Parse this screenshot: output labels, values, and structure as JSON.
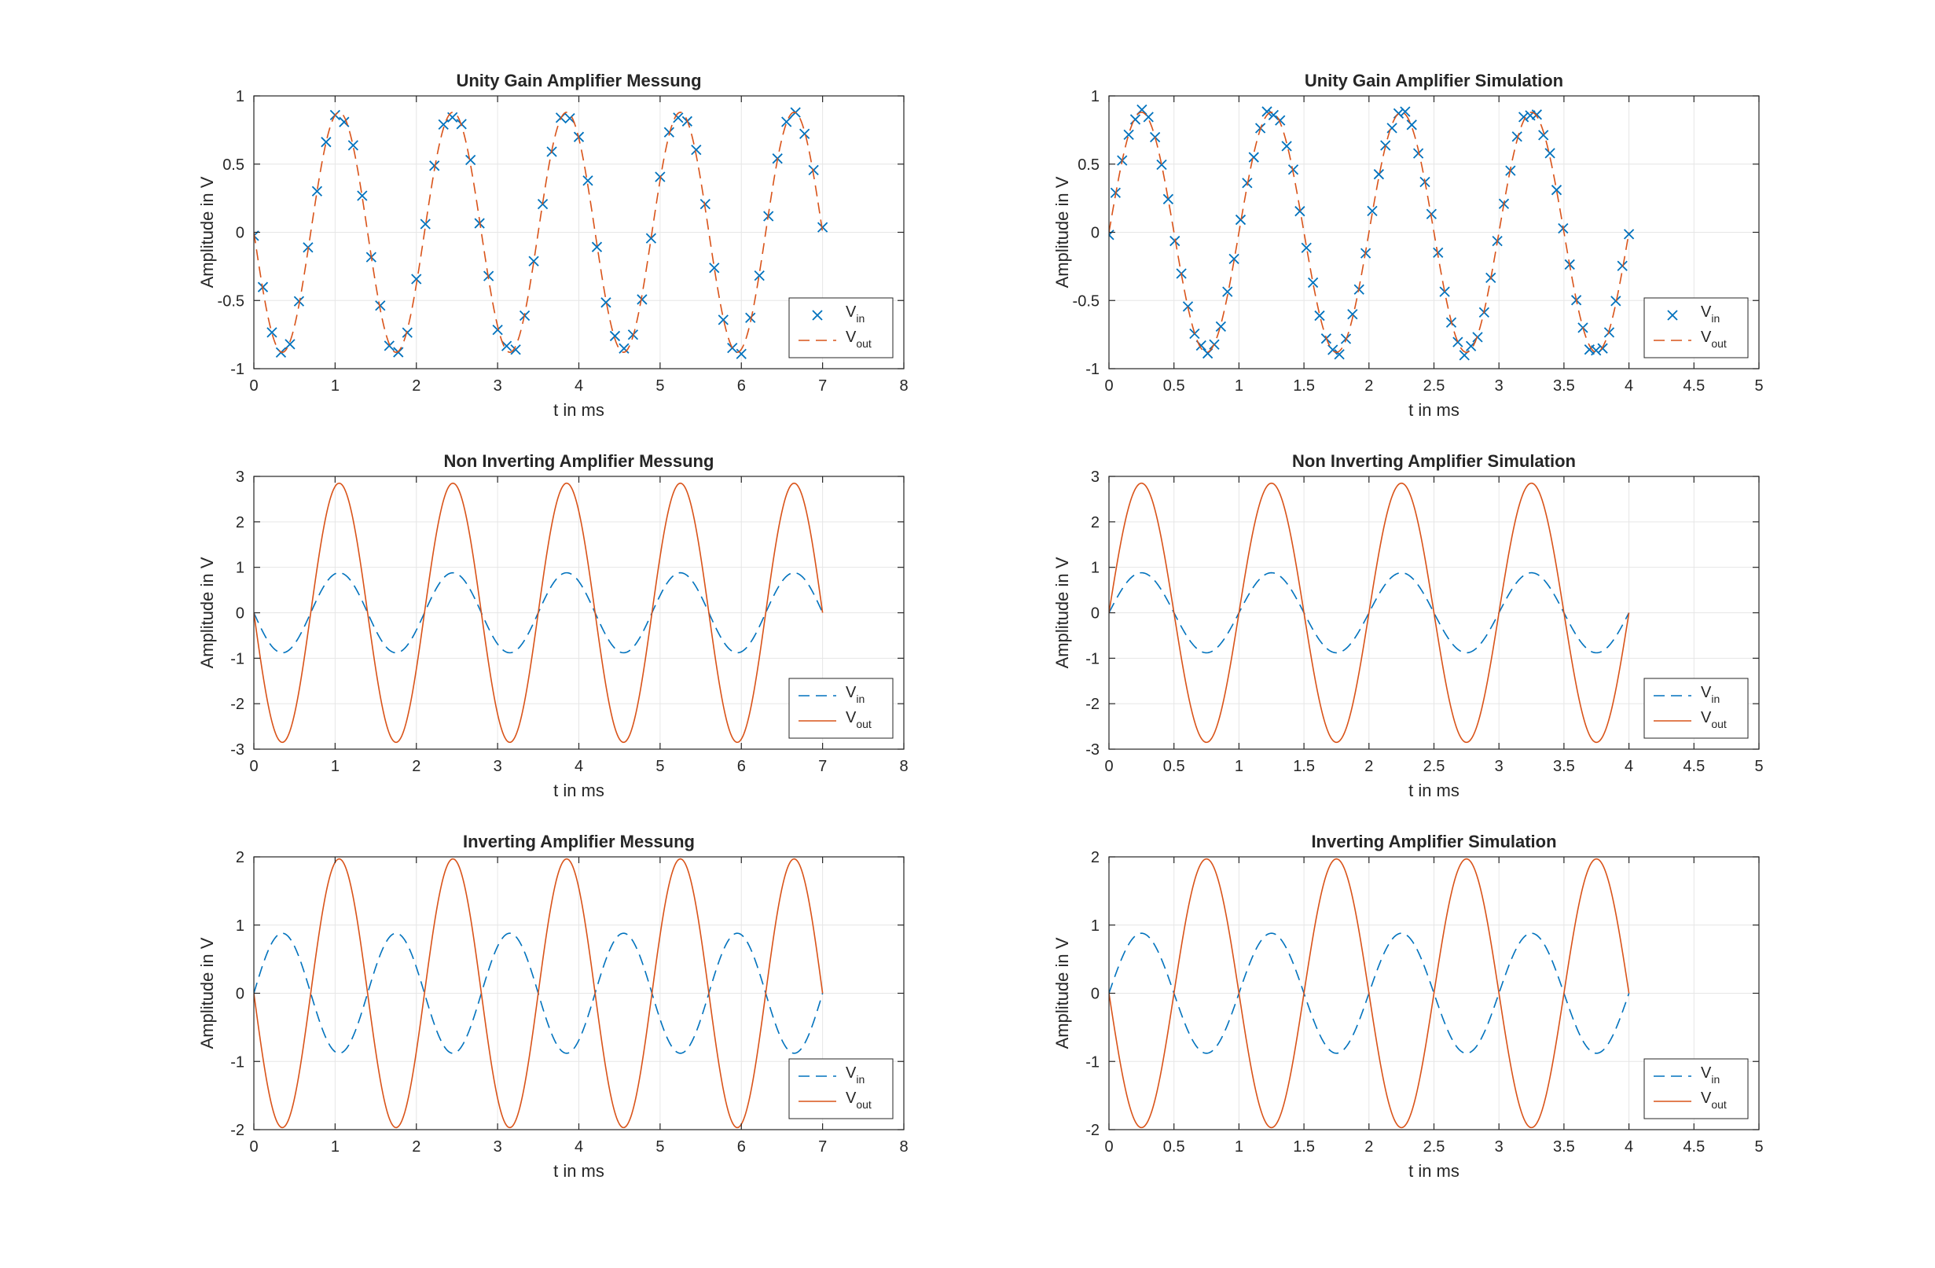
{
  "figure": {
    "background": "#ffffff"
  },
  "colors": {
    "vin": "#0072BD",
    "vout": "#D95319",
    "axis": "#262626",
    "grid": "#e6e6e6"
  },
  "chart_data": [
    {
      "id": "ug-mess",
      "type": "line",
      "title": "Unity Gain Amplifier Messung",
      "xlabel": "t in ms",
      "ylabel": "Amplitude in V",
      "xlim": [
        0,
        8
      ],
      "ylim": [
        -1,
        1
      ],
      "xticks": [
        0,
        1,
        2,
        3,
        4,
        5,
        6,
        7,
        8
      ],
      "xticklabels": [
        "0",
        "1",
        "2",
        "3",
        "4",
        "5",
        "6",
        "7",
        "8"
      ],
      "yticks": [
        -1,
        -0.5,
        0,
        0.5,
        1
      ],
      "yticklabels": [
        "-1",
        "-0.5",
        "0",
        "0.5",
        "1"
      ],
      "grid": true,
      "legend": "bottom-right",
      "series": [
        {
          "name": "V",
          "sub": "in",
          "style": "x-markers",
          "color": "#0072BD",
          "model": {
            "amplitude": 0.88,
            "period_ms": 1.4,
            "phase_sign": -1,
            "t_start": 0,
            "t_end": 7,
            "samples": 64,
            "noise": 0.04
          }
        },
        {
          "name": "V",
          "sub": "out",
          "style": "dashed",
          "color": "#D95319",
          "model": {
            "amplitude": 0.88,
            "period_ms": 1.4,
            "phase_sign": -1,
            "t_start": 0,
            "t_end": 7,
            "samples": 600,
            "noise": 0
          }
        }
      ]
    },
    {
      "id": "ug-sim",
      "type": "line",
      "title": "Unity Gain Amplifier Simulation",
      "xlabel": "t in ms",
      "ylabel": "Amplitude in V",
      "xlim": [
        0,
        5
      ],
      "ylim": [
        -1,
        1
      ],
      "xticks": [
        0,
        0.5,
        1,
        1.5,
        2,
        2.5,
        3,
        3.5,
        4,
        4.5,
        5
      ],
      "xticklabels": [
        "0",
        "0.5",
        "1",
        "1.5",
        "2",
        "2.5",
        "3",
        "3.5",
        "4",
        "4.5",
        "5"
      ],
      "yticks": [
        -1,
        -0.5,
        0,
        0.5,
        1
      ],
      "yticklabels": [
        "-1",
        "-0.5",
        "0",
        "0.5",
        "1"
      ],
      "grid": true,
      "legend": "bottom-right",
      "series": [
        {
          "name": "V",
          "sub": "in",
          "style": "x-markers",
          "color": "#0072BD",
          "model": {
            "amplitude": 0.88,
            "period_ms": 1.0,
            "phase_sign": 1,
            "t_start": 0,
            "t_end": 4,
            "samples": 80,
            "noise": 0.03
          }
        },
        {
          "name": "V",
          "sub": "out",
          "style": "dashed",
          "color": "#D95319",
          "model": {
            "amplitude": 0.88,
            "period_ms": 1.0,
            "phase_sign": 1,
            "t_start": 0,
            "t_end": 4,
            "samples": 600,
            "noise": 0
          }
        }
      ]
    },
    {
      "id": "ni-mess",
      "type": "line",
      "title": "Non Inverting Amplifier Messung",
      "xlabel": "t in ms",
      "ylabel": "Amplitude in V",
      "xlim": [
        0,
        8
      ],
      "ylim": [
        -3,
        3
      ],
      "xticks": [
        0,
        1,
        2,
        3,
        4,
        5,
        6,
        7,
        8
      ],
      "xticklabels": [
        "0",
        "1",
        "2",
        "3",
        "4",
        "5",
        "6",
        "7",
        "8"
      ],
      "yticks": [
        -3,
        -2,
        -1,
        0,
        1,
        2,
        3
      ],
      "yticklabels": [
        "-3",
        "-2",
        "-1",
        "0",
        "1",
        "2",
        "3"
      ],
      "grid": true,
      "legend": "bottom-right",
      "series": [
        {
          "name": "V",
          "sub": "in",
          "style": "dashed",
          "color": "#0072BD",
          "model": {
            "amplitude": 0.88,
            "period_ms": 1.4,
            "phase_sign": -1,
            "t_start": 0,
            "t_end": 7,
            "samples": 600,
            "noise": 0
          }
        },
        {
          "name": "V",
          "sub": "out",
          "style": "solid",
          "color": "#D95319",
          "model": {
            "amplitude": 2.85,
            "period_ms": 1.4,
            "phase_sign": -1,
            "t_start": 0,
            "t_end": 7,
            "samples": 600,
            "noise": 0
          }
        }
      ]
    },
    {
      "id": "ni-sim",
      "type": "line",
      "title": "Non Inverting Amplifier Simulation",
      "xlabel": "t in ms",
      "ylabel": "Amplitude in V",
      "xlim": [
        0,
        5
      ],
      "ylim": [
        -3,
        3
      ],
      "xticks": [
        0,
        0.5,
        1,
        1.5,
        2,
        2.5,
        3,
        3.5,
        4,
        4.5,
        5
      ],
      "xticklabels": [
        "0",
        "0.5",
        "1",
        "1.5",
        "2",
        "2.5",
        "3",
        "3.5",
        "4",
        "4.5",
        "5"
      ],
      "yticks": [
        -3,
        -2,
        -1,
        0,
        1,
        2,
        3
      ],
      "yticklabels": [
        "-3",
        "-2",
        "-1",
        "0",
        "1",
        "2",
        "3"
      ],
      "grid": true,
      "legend": "bottom-right",
      "series": [
        {
          "name": "V",
          "sub": "in",
          "style": "dashed",
          "color": "#0072BD",
          "model": {
            "amplitude": 0.88,
            "period_ms": 1.0,
            "phase_sign": 1,
            "t_start": 0,
            "t_end": 4,
            "samples": 600,
            "noise": 0
          }
        },
        {
          "name": "V",
          "sub": "out",
          "style": "solid",
          "color": "#D95319",
          "model": {
            "amplitude": 2.85,
            "period_ms": 1.0,
            "phase_sign": 1,
            "t_start": 0,
            "t_end": 4,
            "samples": 600,
            "noise": 0
          }
        }
      ]
    },
    {
      "id": "inv-mess",
      "type": "line",
      "title": "Inverting Amplifier Messung",
      "xlabel": "t in ms",
      "ylabel": "Amplitude in V",
      "xlim": [
        0,
        8
      ],
      "ylim": [
        -2,
        2
      ],
      "xticks": [
        0,
        1,
        2,
        3,
        4,
        5,
        6,
        7,
        8
      ],
      "xticklabels": [
        "0",
        "1",
        "2",
        "3",
        "4",
        "5",
        "6",
        "7",
        "8"
      ],
      "yticks": [
        -2,
        -1,
        0,
        1,
        2
      ],
      "yticklabels": [
        "-2",
        "-1",
        "0",
        "1",
        "2"
      ],
      "grid": true,
      "legend": "bottom-right",
      "series": [
        {
          "name": "V",
          "sub": "in",
          "style": "dashed",
          "color": "#0072BD",
          "model": {
            "amplitude": 0.88,
            "period_ms": 1.4,
            "phase_sign": 1,
            "t_start": 0,
            "t_end": 7,
            "samples": 600,
            "noise": 0
          }
        },
        {
          "name": "V",
          "sub": "out",
          "style": "solid",
          "color": "#D95319",
          "model": {
            "amplitude": 1.97,
            "period_ms": 1.4,
            "phase_sign": -1,
            "t_start": 0,
            "t_end": 7,
            "samples": 600,
            "noise": 0
          }
        }
      ]
    },
    {
      "id": "inv-sim",
      "type": "line",
      "title": "Inverting Amplifier Simulation",
      "xlabel": "t in ms",
      "ylabel": "Amplitude in V",
      "xlim": [
        0,
        5
      ],
      "ylim": [
        -2,
        2
      ],
      "xticks": [
        0,
        0.5,
        1,
        1.5,
        2,
        2.5,
        3,
        3.5,
        4,
        4.5,
        5
      ],
      "xticklabels": [
        "0",
        "0.5",
        "1",
        "1.5",
        "2",
        "2.5",
        "3",
        "3.5",
        "4",
        "4.5",
        "5"
      ],
      "yticks": [
        -2,
        -1,
        0,
        1,
        2
      ],
      "yticklabels": [
        "-2",
        "-1",
        "0",
        "1",
        "2"
      ],
      "grid": true,
      "legend": "bottom-right",
      "series": [
        {
          "name": "V",
          "sub": "in",
          "style": "dashed",
          "color": "#0072BD",
          "model": {
            "amplitude": 0.88,
            "period_ms": 1.0,
            "phase_sign": 1,
            "t_start": 0,
            "t_end": 4,
            "samples": 600,
            "noise": 0
          }
        },
        {
          "name": "V",
          "sub": "out",
          "style": "solid",
          "color": "#D95319",
          "model": {
            "amplitude": 1.97,
            "period_ms": 1.0,
            "phase_sign": -1,
            "t_start": 0,
            "t_end": 4,
            "samples": 600,
            "noise": 0
          }
        }
      ]
    }
  ]
}
